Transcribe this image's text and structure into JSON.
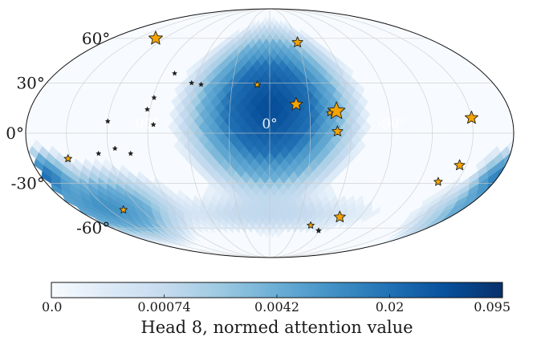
{
  "chart_data": {
    "type": "heatmap",
    "projection": "mollweide",
    "colormap": "blues",
    "colorbar": {
      "label": "Head 8, normed attention value",
      "tick_labels": [
        "0.0",
        "0.00074",
        "0.0042",
        "0.02",
        "0.095"
      ],
      "tick_values": [
        0.0,
        0.00074,
        0.0042,
        0.02,
        0.095
      ],
      "range": [
        0.0,
        0.095
      ],
      "scale": "nonlinear"
    },
    "lat_tick_labels": [
      {
        "label": "60°",
        "lat": 60
      },
      {
        "label": "30°",
        "lat": 30
      },
      {
        "label": "0°",
        "lat": 0
      },
      {
        "label": "-30°",
        "lat": -30
      },
      {
        "label": "-60°",
        "lat": -60
      }
    ],
    "lon_tick_labels": [
      {
        "label": "90°",
        "lon": 90
      },
      {
        "label": "0°",
        "lon": 0
      },
      {
        "label": "-90°",
        "lon": -90
      }
    ],
    "grid": true,
    "attention_blobs": [
      {
        "lon": 0,
        "lat": 15,
        "peak": 0.06,
        "spread_lon": 22,
        "spread_lat": 18
      },
      {
        "lon": 150,
        "lat": -45,
        "peak": 0.012,
        "spread_lon": 25,
        "spread_lat": 10
      },
      {
        "lon": 175,
        "lat": -25,
        "peak": 0.018,
        "spread_lon": 8,
        "spread_lat": 6
      },
      {
        "lon": -175,
        "lat": -30,
        "peak": 0.005,
        "spread_lon": 6,
        "spread_lat": 8
      },
      {
        "lon": 0,
        "lat": -50,
        "peak": 0.0009,
        "spread_lon": 60,
        "spread_lat": 8
      }
    ],
    "markers": [
      {
        "lon": 130,
        "lat": 60,
        "size": 16
      },
      {
        "lon": -30,
        "lat": 57,
        "size": 12
      },
      {
        "lon": 10,
        "lat": 29,
        "size": 7
      },
      {
        "lon": -20,
        "lat": 17,
        "size": 15
      },
      {
        "lon": -50,
        "lat": 13,
        "size": 21
      },
      {
        "lon": -45,
        "lat": 12,
        "size": 7
      },
      {
        "lon": -50,
        "lat": 1,
        "size": 12
      },
      {
        "lon": -150,
        "lat": 9,
        "size": 15
      },
      {
        "lon": -145,
        "lat": -19,
        "size": 12
      },
      {
        "lon": -135,
        "lat": -29,
        "size": 9
      },
      {
        "lon": -70,
        "lat": -52,
        "size": 13
      },
      {
        "lon": -45,
        "lat": -58,
        "size": 7
      },
      {
        "lon": -58,
        "lat": -62,
        "size": 5
      },
      {
        "lon": 152,
        "lat": -15,
        "size": 8
      },
      {
        "lon": 137,
        "lat": -47,
        "size": 8
      },
      {
        "lon": 80,
        "lat": 36,
        "size": 4
      },
      {
        "lon": 63,
        "lat": 30,
        "size": 4
      },
      {
        "lon": 55,
        "lat": 29,
        "size": 4
      },
      {
        "lon": 89,
        "lat": 21,
        "size": 4
      },
      {
        "lon": 92,
        "lat": 14,
        "size": 4
      },
      {
        "lon": 86,
        "lat": 5,
        "size": 4
      },
      {
        "lon": 120,
        "lat": 7,
        "size": 4
      },
      {
        "lon": 115,
        "lat": -9,
        "size": 4
      },
      {
        "lon": 128,
        "lat": -12,
        "size": 4
      },
      {
        "lon": 104,
        "lat": -12,
        "size": 4
      }
    ]
  }
}
